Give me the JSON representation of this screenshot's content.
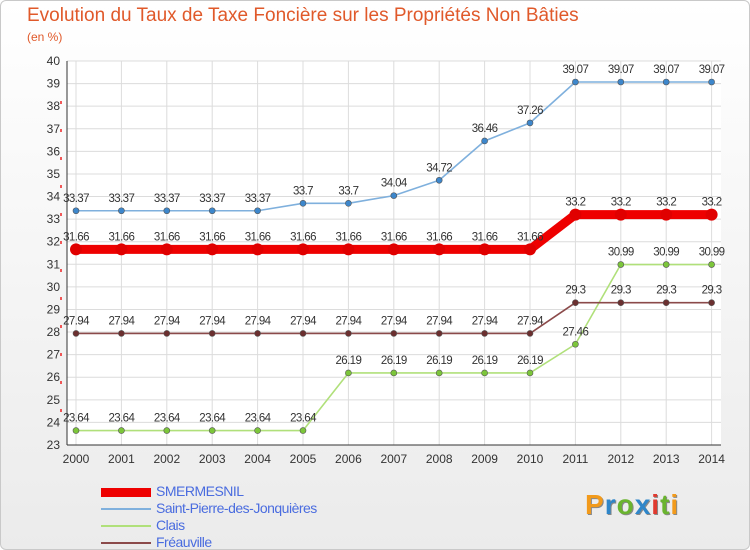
{
  "title": "Evolution du Taux de Taxe Foncière sur les Propriétés Non Bâties",
  "unit_label": "(en %)",
  "logo": {
    "text": "Proxiti",
    "colors": [
      "#f29a1b",
      "#2f86c9",
      "#6ab42f",
      "#2f86c9",
      "#e03a2f",
      "#6ab42f",
      "#f29a1b"
    ]
  },
  "chart_data": {
    "type": "line",
    "title": "Evolution du Taux de Taxe Foncière sur les Propriétés Non Bâties",
    "ylabel": "(en %)",
    "xlabel": "",
    "ylim": [
      23,
      40
    ],
    "yticks": [
      23,
      24,
      25,
      26,
      27,
      28,
      29,
      30,
      31,
      32,
      33,
      34,
      35,
      36,
      37,
      38,
      39,
      40
    ],
    "x": [
      "2000",
      "2001",
      "2002",
      "2003",
      "2004",
      "2005",
      "2006",
      "2007",
      "2008",
      "2009",
      "2010",
      "2011",
      "2012",
      "2013",
      "2014"
    ],
    "series": [
      {
        "name": "SMERMESNIL",
        "color": "#ee0000",
        "marker": "#e00000",
        "bold": true,
        "values": [
          31.66,
          31.66,
          31.66,
          31.66,
          31.66,
          31.66,
          31.66,
          31.66,
          31.66,
          31.66,
          31.66,
          33.2,
          33.2,
          33.2,
          33.2
        ],
        "labels": [
          "31.66",
          "31.66",
          "31.66",
          "31.66",
          "31.66",
          "31.66",
          "31.66",
          "31.66",
          "31.66",
          "31.66",
          "31.66",
          "33.2",
          "33.2",
          "33.2",
          "33.2"
        ]
      },
      {
        "name": "Saint-Pierre-des-Jonquières",
        "color": "#7fb0dd",
        "marker": "#3d87cc",
        "bold": false,
        "values": [
          33.37,
          33.37,
          33.37,
          33.37,
          33.37,
          33.7,
          33.7,
          34.04,
          34.72,
          36.46,
          37.26,
          39.07,
          39.07,
          39.07,
          39.07
        ],
        "labels": [
          "33.37",
          "33.37",
          "33.37",
          "33.37",
          "33.37",
          "33.7",
          "33.7",
          "34.04",
          "34.72",
          "36.46",
          "37.26",
          "39.07",
          "39.07",
          "39.07",
          "39.07"
        ]
      },
      {
        "name": "Clais",
        "color": "#b0e07a",
        "marker": "#7cc63a",
        "bold": false,
        "values": [
          23.64,
          23.64,
          23.64,
          23.64,
          23.64,
          23.64,
          26.19,
          26.19,
          26.19,
          26.19,
          26.19,
          27.46,
          30.99,
          30.99,
          30.99
        ],
        "labels": [
          "23.64",
          "23.64",
          "23.64",
          "23.64",
          "23.64",
          "23.64",
          "26.19",
          "26.19",
          "26.19",
          "26.19",
          "26.19",
          "27.46",
          "30.99",
          "30.99",
          "30.99"
        ]
      },
      {
        "name": "Fréauville",
        "color": "#8b4a4a",
        "marker": "#6b2f2f",
        "bold": false,
        "values": [
          27.94,
          27.94,
          27.94,
          27.94,
          27.94,
          27.94,
          27.94,
          27.94,
          27.94,
          27.94,
          27.94,
          29.3,
          29.3,
          29.3,
          29.3
        ],
        "labels": [
          "27.94",
          "27.94",
          "27.94",
          "27.94",
          "27.94",
          "27.94",
          "27.94",
          "27.94",
          "27.94",
          "27.94",
          "27.94",
          "29.3",
          "29.3",
          "29.3",
          "29.3"
        ]
      }
    ],
    "grid": true,
    "legend": "bottom-left"
  }
}
